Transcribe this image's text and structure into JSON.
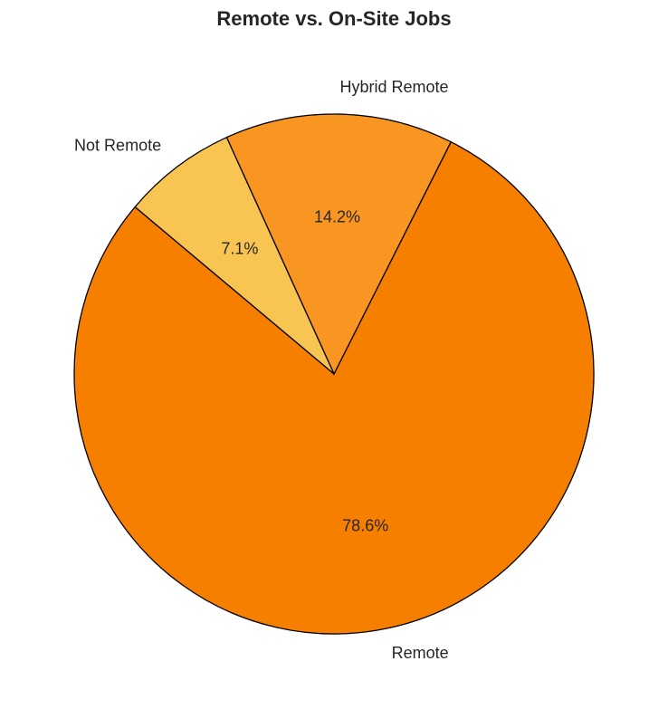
{
  "chart_data": {
    "type": "pie",
    "title": "Remote vs. On-Site Jobs",
    "start_angle_deg": 140,
    "direction": "counterclockwise",
    "slices": [
      {
        "label": "Remote",
        "value": 78.6,
        "pct_label": "78.6%",
        "color": "#f77f00"
      },
      {
        "label": "Hybrid Remote",
        "value": 14.2,
        "pct_label": "14.2%",
        "color": "#f99621"
      },
      {
        "label": "Not Remote",
        "value": 7.1,
        "pct_label": "7.1%",
        "color": "#f9c552"
      }
    ],
    "edge_color": "#000000"
  }
}
